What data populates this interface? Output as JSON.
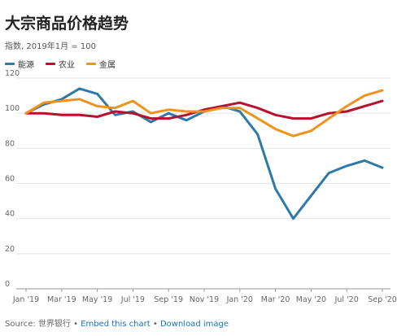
{
  "header": {
    "title": "大宗商品价格趋势",
    "subtitle": "指数, 2019年1月 = 100"
  },
  "legend": [
    {
      "label": "能源",
      "color": "#2f79a8"
    },
    {
      "label": "农业",
      "color": "#b5122e"
    },
    {
      "label": "金属",
      "color": "#f0921e"
    }
  ],
  "footer": {
    "source": "Source: 世界银行",
    "sep1": " • ",
    "embed": "Embed this chart",
    "sep2": " • ",
    "download": "Download image"
  },
  "chart_data": {
    "type": "line",
    "x": [
      "Jan '19",
      "Feb '19",
      "Mar '19",
      "Apr '19",
      "May '19",
      "Jun '19",
      "Jul '19",
      "Aug '19",
      "Sep '19",
      "Oct '19",
      "Nov '19",
      "Dec '19",
      "Jan '20",
      "Feb '20",
      "Mar '20",
      "Apr '20",
      "May '20",
      "Jun '20",
      "Jul '20",
      "Aug '20",
      "Sep '20"
    ],
    "x_tick_labels": [
      "Jan '19",
      "Mar '19",
      "May '19",
      "Jul '19",
      "Sep '19",
      "Nov '19",
      "Jan '20",
      "Mar '20",
      "May '20",
      "Jul '20",
      "Sep '20"
    ],
    "y_ticks": [
      0,
      20,
      40,
      60,
      80,
      100,
      120
    ],
    "ylim": [
      0,
      120
    ],
    "grid": true,
    "legend_position": "top-left",
    "series": [
      {
        "name": "能源",
        "color": "#2f79a8",
        "values": [
          100,
          105,
          108,
          114,
          111,
          99,
          101,
          95,
          100,
          96,
          101,
          104,
          101,
          88,
          57,
          40,
          53,
          66,
          70,
          73,
          69
        ]
      },
      {
        "name": "农业",
        "color": "#b5122e",
        "values": [
          100,
          100,
          99,
          99,
          98,
          101,
          100,
          97,
          97,
          99,
          102,
          104,
          106,
          103,
          99,
          97,
          97,
          100,
          101,
          104,
          107
        ]
      },
      {
        "name": "金属",
        "color": "#f0921e",
        "values": [
          100,
          106,
          107,
          108,
          104,
          103,
          107,
          100,
          102,
          101,
          101,
          103,
          103,
          97,
          91,
          87,
          90,
          97,
          104,
          110,
          113
        ]
      }
    ]
  }
}
